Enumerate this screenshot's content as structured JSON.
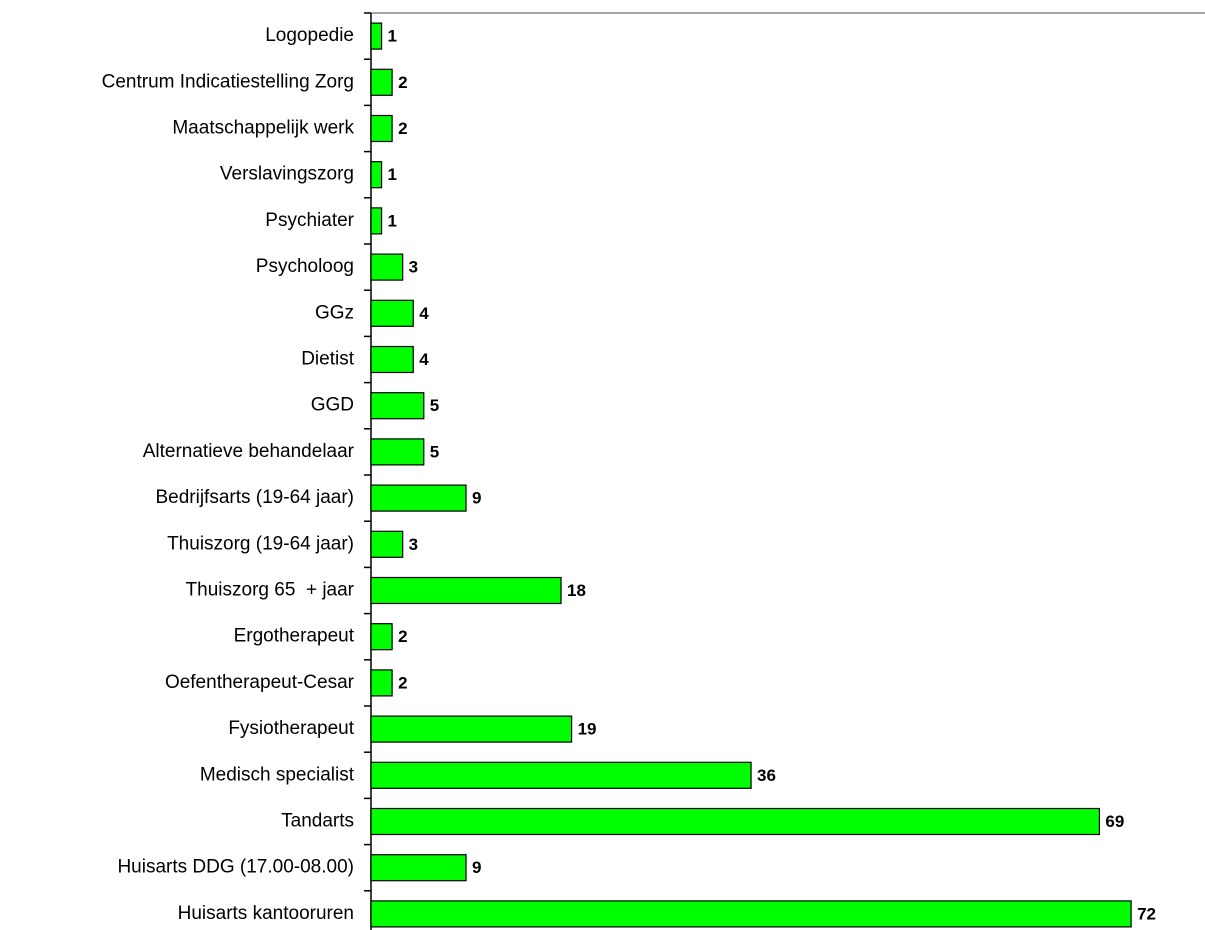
{
  "chart_data": {
    "type": "barh",
    "categories": [
      "Logopedie",
      "Centrum Indicatiestelling Zorg",
      "Maatschappelijk werk",
      "Verslavingszorg",
      "Psychiater",
      "Psycholoog",
      "GGz",
      "Dietist",
      "GGD",
      "Alternatieve behandelaar",
      "Bedrijfsarts (19-64 jaar)",
      "Thuiszorg (19-64 jaar)",
      "Thuiszorg 65  + jaar",
      "Ergotherapeut",
      "Oefentherapeut-Cesar",
      "Fysiotherapeut",
      "Medisch specialist",
      "Tandarts",
      "Huisarts DDG (17.00-08.00)",
      "Huisarts kantooruren"
    ],
    "values": [
      1,
      2,
      2,
      1,
      1,
      3,
      4,
      4,
      5,
      5,
      9,
      3,
      18,
      2,
      2,
      19,
      36,
      69,
      9,
      72
    ],
    "color": "#00ff00",
    "xlim": [
      0,
      79
    ]
  }
}
